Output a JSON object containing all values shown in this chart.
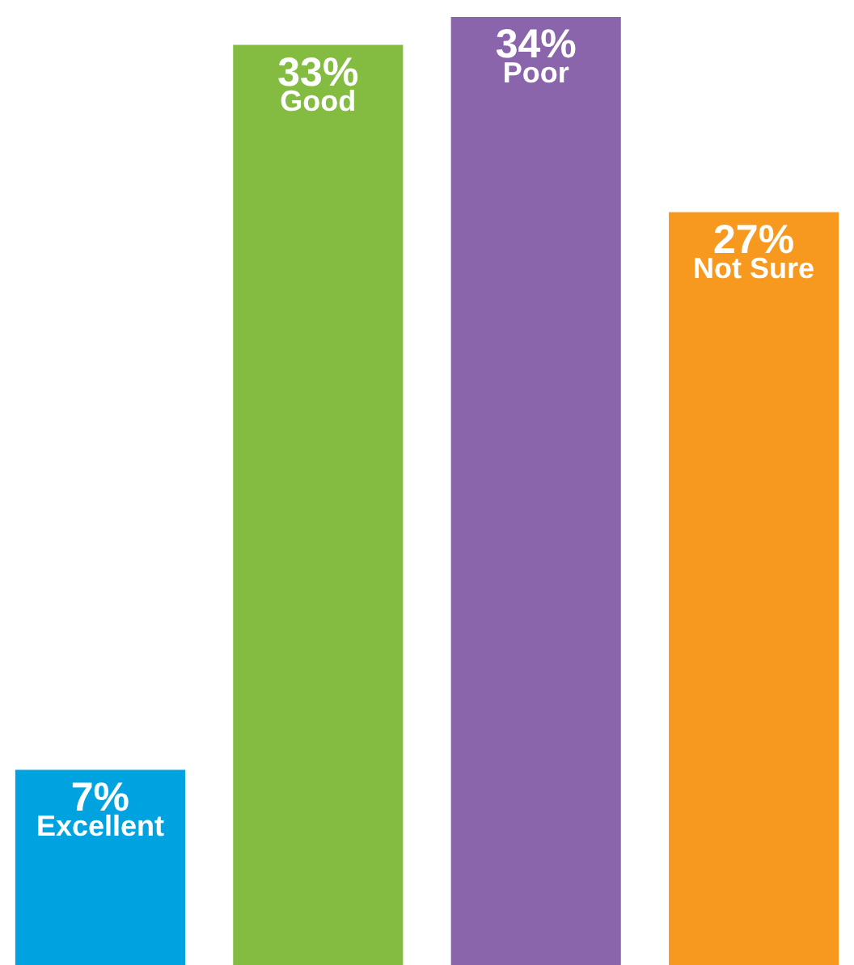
{
  "chart_data": {
    "type": "bar",
    "categories": [
      "Excellent",
      "Good",
      "Poor",
      "Not Sure"
    ],
    "values": [
      7,
      33,
      34,
      27
    ],
    "value_labels": [
      "7%",
      "33%",
      "34%",
      "27%"
    ],
    "colors": [
      "#00a3e0",
      "#84bc41",
      "#8a65ab",
      "#f7991f"
    ],
    "tick_labels": false,
    "grid": false,
    "legend": false
  }
}
